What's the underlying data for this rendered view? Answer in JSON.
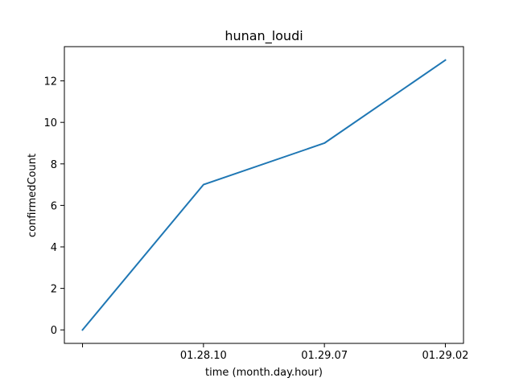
{
  "chart_data": {
    "type": "line",
    "title": "hunan_loudi",
    "xlabel": "time (month.day.hour)",
    "ylabel": "confirmedCount",
    "x_tick_labels": [
      "",
      "01.28.10",
      "01.29.07",
      "01.29.02"
    ],
    "series": [
      {
        "values": [
          0,
          7,
          9,
          13
        ],
        "color": "#1f77b4"
      }
    ],
    "ylim": [
      -0.65,
      13.65
    ],
    "y_ticks": [
      0,
      2,
      4,
      6,
      8,
      10,
      12
    ],
    "grid": false,
    "legend": "none"
  }
}
